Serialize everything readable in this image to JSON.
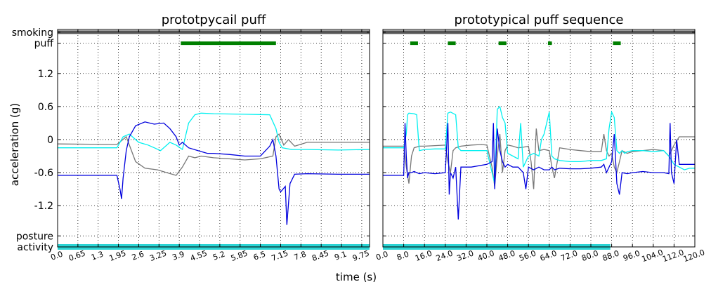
{
  "figure": {
    "ylabel": "acceleration (g)",
    "xlabel": "time (s)",
    "ytick_labels": [
      "smoking",
      "puff",
      "1.2",
      "0.6",
      "0",
      "-0.6",
      "-1.2",
      "posture",
      "activity"
    ]
  },
  "colors": {
    "x_axis_series": "#0000dd",
    "y_axis_series": "#00f0f0",
    "z_axis_series": "#777777",
    "smoking_band": "#555555",
    "puff_marker": "#008000",
    "activity_band": "#2ad4d4"
  },
  "chart_data": [
    {
      "type": "line",
      "title": "prototpycail puff",
      "xlim": [
        0,
        10
      ],
      "ylim": [
        -1.95,
        2.0
      ],
      "xticks": [
        "0.0",
        "0.65",
        "1.3",
        "1.95",
        "2.6",
        "3.25",
        "3.9",
        "4.55",
        "5.2",
        "5.85",
        "6.5",
        "7.15",
        "7.8",
        "8.45",
        "9.1",
        "9.75"
      ],
      "yticks": [
        1.2,
        0.6,
        0,
        -0.6,
        -1.2
      ],
      "grid": true,
      "band_rows": {
        "smoking": 1.95,
        "puff": 1.75,
        "posture": -1.75,
        "activity": -1.95
      },
      "smoking_band": [
        [
          0,
          10
        ]
      ],
      "puff_segments": [
        [
          3.95,
          7.0
        ]
      ],
      "activity_band": [
        [
          0,
          10
        ]
      ],
      "series": [
        {
          "color": "#777777",
          "x": [
            0,
            1.9,
            2.2,
            2.5,
            2.8,
            3.2,
            3.5,
            3.8,
            4.0,
            4.2,
            4.4,
            4.6,
            5.0,
            5.5,
            6.0,
            6.5,
            6.9,
            7.0,
            7.1,
            7.25,
            7.4,
            7.6,
            8.0,
            9.0,
            10.0
          ],
          "y": [
            -0.08,
            -0.09,
            0.05,
            -0.4,
            -0.52,
            -0.55,
            -0.6,
            -0.65,
            -0.5,
            -0.3,
            -0.33,
            -0.3,
            -0.33,
            -0.35,
            -0.37,
            -0.35,
            -0.3,
            0.05,
            0.1,
            -0.1,
            0.0,
            -0.12,
            -0.05,
            -0.05,
            -0.05
          ]
        },
        {
          "color": "#00f0f0",
          "x": [
            0,
            1.9,
            2.1,
            2.3,
            2.6,
            2.9,
            3.1,
            3.3,
            3.6,
            3.8,
            4.0,
            4.2,
            4.4,
            4.6,
            5.0,
            6.0,
            6.8,
            7.0,
            7.1,
            7.2,
            7.5,
            8.0,
            9.0,
            10.0
          ],
          "y": [
            -0.15,
            -0.15,
            0.05,
            0.1,
            -0.05,
            -0.1,
            -0.15,
            -0.2,
            -0.05,
            -0.1,
            -0.18,
            0.3,
            0.45,
            0.48,
            0.47,
            0.46,
            0.45,
            0.2,
            -0.05,
            -0.15,
            -0.18,
            -0.18,
            -0.19,
            -0.18
          ]
        },
        {
          "color": "#0000dd",
          "x": [
            0,
            1.9,
            2.0,
            2.05,
            2.1,
            2.2,
            2.3,
            2.5,
            2.8,
            3.1,
            3.4,
            3.6,
            3.8,
            3.9,
            4.0,
            4.2,
            4.5,
            4.8,
            5.0,
            5.5,
            6.0,
            6.5,
            6.8,
            6.9,
            7.0,
            7.05,
            7.1,
            7.15,
            7.3,
            7.35,
            7.45,
            7.6,
            8.0,
            9.0,
            10.0
          ],
          "y": [
            -0.65,
            -0.65,
            -0.9,
            -1.08,
            -0.7,
            -0.2,
            0.05,
            0.25,
            0.32,
            0.28,
            0.3,
            0.2,
            0.05,
            -0.1,
            -0.05,
            -0.15,
            -0.2,
            -0.25,
            -0.25,
            -0.27,
            -0.3,
            -0.3,
            -0.12,
            0.0,
            -0.3,
            -0.6,
            -0.9,
            -0.95,
            -0.85,
            -1.55,
            -0.8,
            -0.63,
            -0.62,
            -0.63,
            -0.63
          ]
        }
      ]
    },
    {
      "type": "line",
      "title": "prototypical puff sequence",
      "xlim": [
        0,
        120
      ],
      "ylim": [
        -1.95,
        2.0
      ],
      "xticks": [
        "0.0",
        "8.0",
        "16.0",
        "24.0",
        "32.0",
        "40.0",
        "48.0",
        "56.0",
        "64.0",
        "72.0",
        "80.0",
        "88.0",
        "96.0",
        "104.0",
        "112.0",
        "120.0"
      ],
      "yticks": [
        1.2,
        0.6,
        0,
        -0.6,
        -1.2
      ],
      "grid": true,
      "band_rows": {
        "smoking": 1.95,
        "puff": 1.75,
        "posture": -1.75,
        "activity": -1.95
      },
      "smoking_band": [
        [
          0,
          120
        ]
      ],
      "puff_segments": [
        [
          10.5,
          13.5
        ],
        [
          25.0,
          28.0
        ],
        [
          44.5,
          47.5
        ],
        [
          63.5,
          65.0
        ],
        [
          88.5,
          91.5
        ]
      ],
      "activity_band": [
        [
          0,
          87.5
        ]
      ],
      "series": [
        {
          "color": "#777777",
          "x": [
            0,
            8,
            9,
            10,
            11,
            12,
            14,
            16,
            20,
            24,
            25,
            26,
            27,
            28,
            30,
            34,
            38,
            40,
            42,
            43,
            44,
            45,
            46,
            47,
            48,
            50,
            52,
            54,
            56,
            57,
            58,
            59,
            60,
            62,
            64,
            65,
            66,
            68,
            72,
            76,
            80,
            84,
            85,
            86,
            87,
            88,
            89,
            90,
            92,
            94,
            96,
            100,
            104,
            108,
            110,
            112,
            114,
            116,
            120
          ],
          "y": [
            -0.12,
            -0.12,
            -0.5,
            -0.8,
            -0.3,
            -0.15,
            -0.12,
            -0.12,
            -0.11,
            -0.1,
            -0.4,
            -0.6,
            -0.2,
            -0.15,
            -0.12,
            -0.1,
            -0.09,
            -0.1,
            -0.5,
            -0.85,
            -0.3,
            0.1,
            -0.6,
            -0.2,
            -0.1,
            -0.12,
            -0.15,
            -0.14,
            -0.12,
            -0.4,
            -0.9,
            0.2,
            -0.2,
            -0.18,
            -0.2,
            -0.5,
            -0.7,
            -0.15,
            -0.18,
            -0.2,
            -0.22,
            -0.22,
            0.1,
            -0.2,
            -0.3,
            -0.25,
            -0.5,
            -0.6,
            -0.2,
            -0.25,
            -0.22,
            -0.2,
            -0.18,
            -0.2,
            -0.3,
            -0.1,
            0.05,
            0.05,
            0.05
          ]
        },
        {
          "color": "#00f0f0",
          "x": [
            0,
            8,
            9,
            9.5,
            10,
            12,
            13,
            14,
            16,
            20,
            24,
            25,
            26,
            28,
            29,
            30,
            34,
            40,
            42,
            43,
            44,
            45,
            46,
            47,
            48,
            50,
            52,
            53,
            54,
            56,
            58,
            60,
            61,
            62,
            64,
            65,
            66,
            68,
            72,
            76,
            80,
            84,
            86,
            87,
            88,
            89,
            90,
            91,
            92,
            93,
            94,
            96,
            100,
            104,
            108,
            110,
            112,
            114,
            116,
            118,
            120
          ],
          "y": [
            -0.15,
            -0.15,
            0.1,
            0.45,
            0.48,
            0.47,
            0.45,
            -0.2,
            -0.18,
            -0.17,
            -0.17,
            0.48,
            0.5,
            0.45,
            -0.15,
            -0.2,
            -0.2,
            -0.2,
            -0.6,
            -0.8,
            0.55,
            0.6,
            0.4,
            0.3,
            -0.25,
            -0.3,
            -0.35,
            0.3,
            -0.5,
            -0.3,
            -0.25,
            -0.3,
            0.0,
            0.1,
            0.5,
            -0.3,
            -0.35,
            -0.38,
            -0.4,
            -0.4,
            -0.38,
            -0.38,
            -0.35,
            0.2,
            0.5,
            0.4,
            -0.2,
            -0.25,
            -0.2,
            -0.25,
            -0.22,
            -0.2,
            -0.2,
            -0.22,
            -0.2,
            -0.3,
            -0.45,
            -0.5,
            -0.55,
            -0.52,
            -0.52
          ]
        },
        {
          "color": "#0000dd",
          "x": [
            0,
            8,
            8.5,
            9,
            9.5,
            10,
            11,
            12,
            14,
            16,
            20,
            24,
            25,
            25.5,
            26,
            27,
            28,
            29,
            30,
            34,
            40,
            42,
            42.5,
            43,
            44,
            45,
            46,
            47,
            48,
            50,
            52,
            54,
            55,
            56,
            58,
            60,
            62,
            64,
            65,
            66,
            68,
            72,
            76,
            80,
            84,
            85,
            86,
            88,
            89,
            90,
            91,
            92,
            94,
            96,
            100,
            104,
            108,
            110,
            110.5,
            111,
            112,
            113,
            114,
            116,
            120
          ],
          "y": [
            -0.65,
            -0.65,
            0.3,
            -0.3,
            -0.7,
            -0.6,
            -0.6,
            -0.58,
            -0.62,
            -0.6,
            -0.62,
            -0.6,
            0.3,
            -1.0,
            -0.6,
            -0.7,
            -0.5,
            -1.45,
            -0.5,
            -0.5,
            -0.45,
            -0.4,
            0.3,
            -0.9,
            0.2,
            -0.2,
            -0.4,
            -0.5,
            -0.45,
            -0.5,
            -0.5,
            -0.6,
            -0.9,
            -0.5,
            -0.55,
            -0.5,
            -0.55,
            -0.55,
            -0.5,
            -0.55,
            -0.52,
            -0.53,
            -0.53,
            -0.52,
            -0.5,
            -0.45,
            -0.6,
            -0.4,
            0.1,
            -0.8,
            -1.0,
            -0.6,
            -0.62,
            -0.6,
            -0.58,
            -0.6,
            -0.6,
            -0.62,
            0.3,
            -0.6,
            -0.8,
            0.0,
            -0.45,
            -0.45,
            -0.45
          ]
        }
      ]
    }
  ]
}
